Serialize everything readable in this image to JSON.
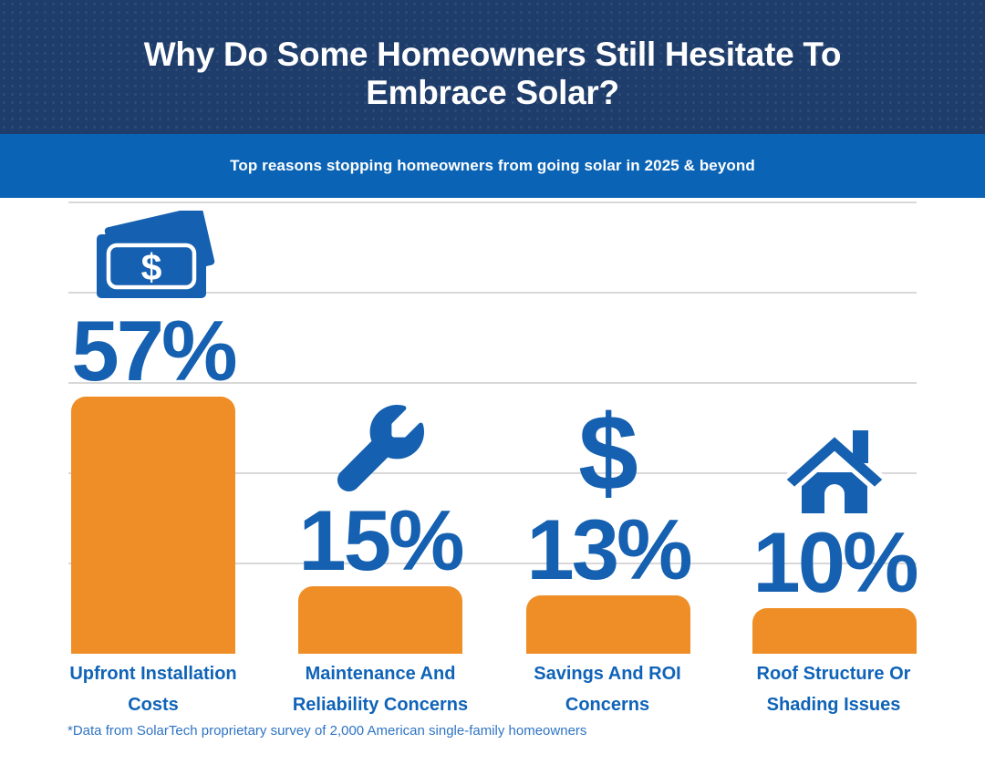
{
  "header": {
    "title": "Why Do Some Homeowners Still Hesitate To Embrace Solar?",
    "subtitle": "Top reasons stopping homeowners from going solar in 2025 & beyond"
  },
  "footnote": "*Data from SolarTech proprietary survey of 2,000 American single-family homeowners",
  "colors": {
    "header_navy": "#1e3d6b",
    "band_blue": "#0a63b5",
    "accent_blue": "#1560b0",
    "label_blue": "#0f63b8",
    "bar_orange": "#ef8e26",
    "gridline_gray": "#d8d8d8",
    "background": "#ffffff"
  },
  "chart_data": {
    "type": "bar",
    "categories": [
      "Upfront Installation Costs",
      "Maintenance And Reliability Concerns",
      "Savings And ROI Concerns",
      "Roof Structure Or Shading Issues"
    ],
    "label_lines": [
      [
        "Upfront Installation",
        "Costs"
      ],
      [
        "Maintenance And",
        "Reliability Concerns"
      ],
      [
        "Savings And ROI",
        "Concerns"
      ],
      [
        "Roof Structure Or",
        "Shading Issues"
      ]
    ],
    "values": [
      57,
      15,
      13,
      10
    ],
    "value_labels": [
      "57%",
      "15%",
      "13%",
      "10%"
    ],
    "icons": [
      "money-bills-icon",
      "wrench-icon",
      "dollar-sign-icon",
      "house-icon"
    ],
    "unit": "%",
    "ylim": [
      0,
      100
    ],
    "gridline_step": 20,
    "grid": true,
    "legend": false,
    "bar_color": "#ef8e26",
    "value_label_position": "above-bar",
    "dollar_glyph": "$"
  }
}
